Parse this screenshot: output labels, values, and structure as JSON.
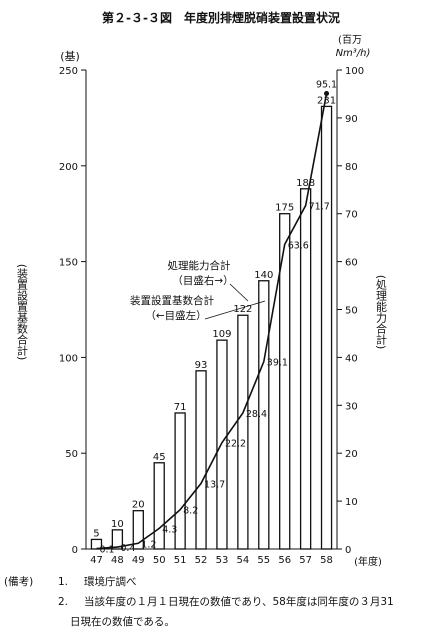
{
  "chart_data": {
    "type": "bar",
    "title": "第２-３-３図　年度別排煙脱硝装置設置状況",
    "categories": [
      "47",
      "48",
      "49",
      "50",
      "51",
      "52",
      "53",
      "54",
      "55",
      "56",
      "57",
      "58"
    ],
    "x_unit": "(年度)",
    "ylabel_left": "(装置設置基数合計)",
    "ylabel_right": "(処理能力合計)",
    "y_unit_left": "(基)",
    "y_unit_right_line1": "(百万",
    "y_unit_right_line2": "Nm³/h)",
    "ylim_left": [
      0,
      250
    ],
    "ylim_right": [
      0,
      100
    ],
    "yticks_left": [
      0,
      50,
      100,
      150,
      200,
      250
    ],
    "yticks_right": [
      0,
      10,
      20,
      30,
      40,
      50,
      60,
      70,
      80,
      90,
      100
    ],
    "grid": false,
    "series": [
      {
        "name": "装置設置基数合計",
        "type": "bar",
        "axis": "left",
        "values": [
          5,
          10,
          20,
          45,
          71,
          93,
          109,
          122,
          140,
          175,
          188,
          231
        ]
      },
      {
        "name": "処理能力合計",
        "type": "line",
        "axis": "right",
        "values": [
          0.1,
          0.4,
          1.2,
          4.3,
          8.2,
          13.7,
          22.2,
          28.4,
          39.1,
          63.6,
          71.7,
          95.1
        ],
        "labels": [
          "0.1",
          "0.4",
          "1.2",
          "4.3",
          "8.2",
          "13.7",
          "22.2",
          "28.4",
          "39.1",
          "63.6",
          "71.7",
          "95.1"
        ]
      }
    ],
    "annotations": {
      "line_label_1": "処理能力合計",
      "line_label_2": "（目盛右→）",
      "bar_label_1": "装置設置基数合計",
      "bar_label_2": "（←目盛左）"
    }
  },
  "notes": {
    "heading": "(備考)",
    "items": [
      {
        "num": "1.",
        "text": "環境庁調べ"
      },
      {
        "num": "2.",
        "text": "当該年度の１月１日現在の数値であり、58年度は同年度の３月31"
      }
    ],
    "continuation": "日現在の数値である。"
  }
}
